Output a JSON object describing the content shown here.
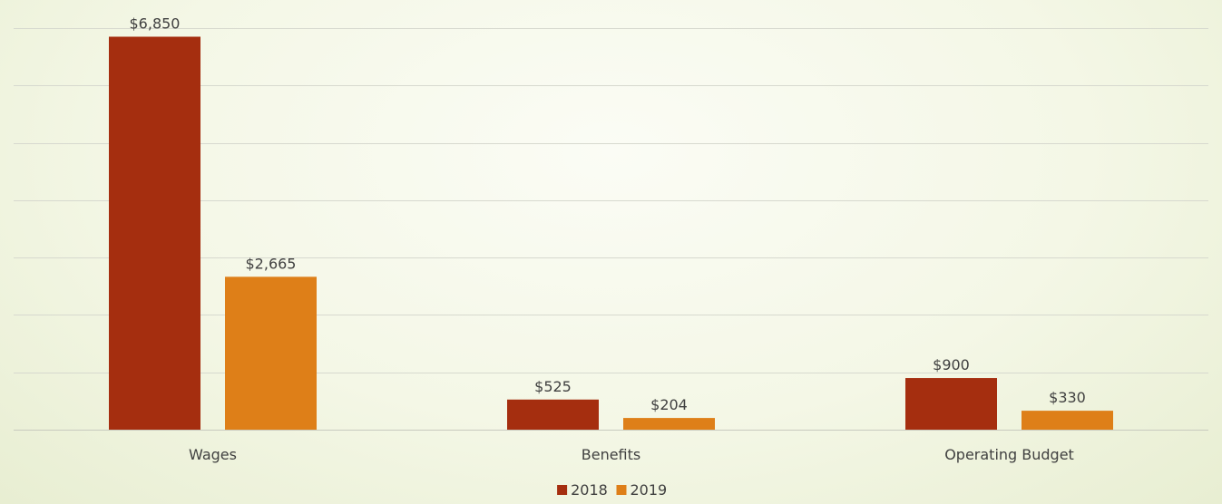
{
  "chart_data": {
    "type": "bar",
    "title": "",
    "xlabel": "",
    "ylabel": "",
    "categories": [
      "Wages",
      "Benefits",
      "Operating Budget"
    ],
    "series": [
      {
        "name": "2018",
        "color": "#a52e0f",
        "values": [
          6850,
          525,
          900
        ],
        "labels": [
          "$6,850",
          "$525",
          "$900"
        ]
      },
      {
        "name": "2019",
        "color": "#de7f18",
        "values": [
          2665,
          204,
          330
        ],
        "labels": [
          "$2,665",
          "$204",
          "$330"
        ]
      }
    ],
    "ylim": [
      0,
      7000
    ],
    "ytick_step": 1000,
    "show_y_axis_labels": false,
    "grid": true,
    "legend_position": "bottom"
  }
}
